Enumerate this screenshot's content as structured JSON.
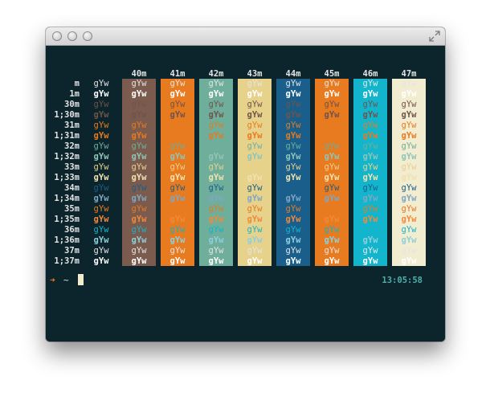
{
  "window": {
    "controls": [
      "close",
      "minimize",
      "zoom"
    ]
  },
  "table": {
    "headers": [
      "40m",
      "41m",
      "42m",
      "43m",
      "44m",
      "45m",
      "46m",
      "47m"
    ],
    "row_labels": [
      "m",
      "1m",
      "30m",
      "1;30m",
      "31m",
      "1;31m",
      "32m",
      "1;32m",
      "33m",
      "1;33m",
      "34m",
      "1;34m",
      "35m",
      "1;35m",
      "36m",
      "1;36m",
      "37m",
      "1;37m"
    ],
    "sample_text": "gYw",
    "default_fg": "#e4e4e4",
    "bold_fg": "#ffffff",
    "column_backgrounds": [
      "#7a5b4d",
      "#e87a1f",
      "#6fae9b",
      "#e7d28c",
      "#1a5f8c",
      "#e87a1f",
      "#12b5cc",
      "#f2ecd0"
    ],
    "row_fg_colors": [
      "#e4e4e4",
      "#ffffff",
      "#6e544b",
      "#6e544b",
      "#e87a1f",
      "#e87a1f",
      "#6fae9b",
      "#8ec5b7",
      "#e7d28c",
      "#f0e2ae",
      "#1a5f8c",
      "#7ea7c4",
      "#e87a1f",
      "#f08a3a",
      "#12b5cc",
      "#8ecfdc",
      "#e4e4e4",
      "#ffffff"
    ]
  },
  "prompt": {
    "arrow": "➜",
    "directory": "~"
  },
  "status": {
    "time": "13:05:58"
  }
}
